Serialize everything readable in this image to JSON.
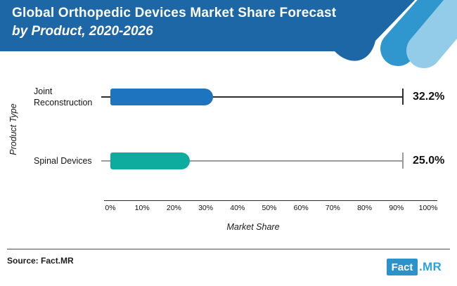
{
  "header": {
    "title_line1": "Global Orthopedic Devices Market Share Forecast",
    "title_line2": "by Product, 2020-2026",
    "bg_color": "#1e67a6",
    "stripe_medium_color": "#2f97cd",
    "stripe_light_color": "#93cce8"
  },
  "chart_data": {
    "type": "bar",
    "orientation": "horizontal",
    "title": "Global Orthopedic Devices Market Share Forecast by Product, 2020-2026",
    "xlabel": "Market Share",
    "ylabel": "Product Type",
    "xlim": [
      0,
      100
    ],
    "x_ticks": [
      "0%",
      "10%",
      "20%",
      "30%",
      "40%",
      "50%",
      "60%",
      "70%",
      "80%",
      "90%",
      "100%"
    ],
    "categories": [
      "Joint Reconstruction",
      "Spinal Devices"
    ],
    "values": [
      32.2,
      25.0
    ],
    "grid": "off",
    "rows": [
      {
        "label": "Joint Reconstruction",
        "value": 32.2,
        "display_value": "32.2%",
        "bar_color": "#1f74c0",
        "line_color": "#2e2e2e"
      },
      {
        "label": "Spinal Devices",
        "value": 25.0,
        "display_value": "25.0%",
        "bar_color": "#0eac9e",
        "line_color": "#9b9b9b"
      }
    ]
  },
  "footer": {
    "source_text": "Source: Fact.MR",
    "logo": {
      "part1": "Fact",
      "part2": ".MR",
      "box_color": "#2b93c9",
      "suffix_color": "#29a4de"
    }
  }
}
